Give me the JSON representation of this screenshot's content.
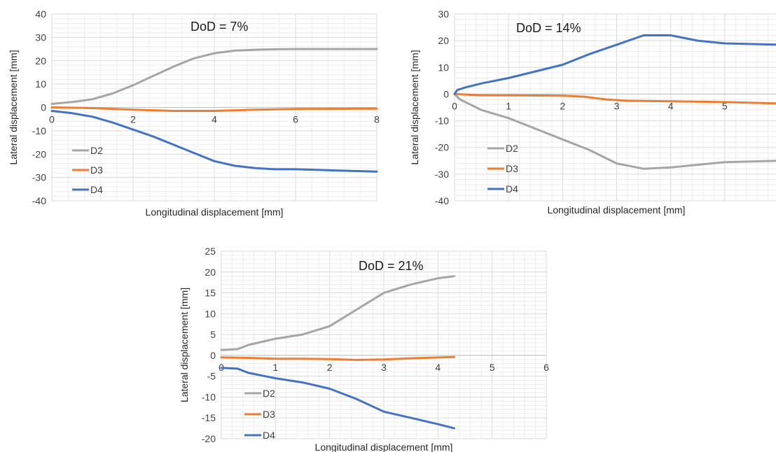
{
  "chart_data": [
    {
      "type": "line",
      "title": "DoD = 7%",
      "xlabel": "Longitudinal displacement [mm]",
      "ylabel": "Lateral displacement [mm]",
      "xlim": [
        0,
        8
      ],
      "ylim": [
        -40,
        40
      ],
      "xticks": [
        0,
        2,
        4,
        6,
        8
      ],
      "yticks": [
        -40,
        -30,
        -20,
        -10,
        0,
        10,
        20,
        30,
        40
      ],
      "grid": true,
      "legend_position": "bottom-left",
      "series": [
        {
          "name": "D2",
          "color": "#a5a5a5",
          "points": [
            [
              0,
              1.5
            ],
            [
              0.5,
              2.3
            ],
            [
              1,
              3.5
            ],
            [
              1.5,
              6
            ],
            [
              2,
              9.5
            ],
            [
              2.5,
              13.5
            ],
            [
              3,
              17.5
            ],
            [
              3.5,
              21
            ],
            [
              4,
              23.2
            ],
            [
              4.5,
              24.3
            ],
            [
              5,
              24.7
            ],
            [
              5.5,
              24.9
            ],
            [
              6,
              25
            ],
            [
              6.5,
              25
            ],
            [
              7,
              25
            ],
            [
              8,
              25
            ]
          ]
        },
        {
          "name": "D3",
          "color": "#ed7d31",
          "points": [
            [
              0,
              0
            ],
            [
              1,
              -0.3
            ],
            [
              2,
              -1
            ],
            [
              3,
              -1.5
            ],
            [
              4,
              -1.5
            ],
            [
              5,
              -1
            ],
            [
              6,
              -0.7
            ],
            [
              7,
              -0.6
            ],
            [
              8,
              -0.5
            ]
          ]
        },
        {
          "name": "D4",
          "color": "#4472c4",
          "points": [
            [
              0,
              -1.5
            ],
            [
              0.5,
              -2.5
            ],
            [
              1,
              -4
            ],
            [
              1.5,
              -6.5
            ],
            [
              2,
              -9.5
            ],
            [
              2.5,
              -12.5
            ],
            [
              3,
              -16
            ],
            [
              3.5,
              -19.5
            ],
            [
              4,
              -23
            ],
            [
              4.5,
              -25
            ],
            [
              5,
              -26
            ],
            [
              5.5,
              -26.5
            ],
            [
              6,
              -26.5
            ],
            [
              7,
              -27
            ],
            [
              8,
              -27.5
            ]
          ]
        }
      ]
    },
    {
      "type": "line",
      "title": "DoD = 14%",
      "xlabel": "Longitudinal displacement [mm]",
      "ylabel": "Lateral displacement [mm]",
      "xlim": [
        0,
        6
      ],
      "ylim": [
        -40,
        30
      ],
      "xticks": [
        0,
        1,
        2,
        3,
        4,
        5,
        6
      ],
      "yticks": [
        -40,
        -30,
        -20,
        -10,
        0,
        10,
        20,
        30
      ],
      "grid": true,
      "legend_position": "bottom-left",
      "series": [
        {
          "name": "D2",
          "color": "#a5a5a5",
          "points": [
            [
              0,
              0
            ],
            [
              0.1,
              -2
            ],
            [
              0.3,
              -4
            ],
            [
              0.5,
              -6
            ],
            [
              1,
              -9
            ],
            [
              1.5,
              -13
            ],
            [
              2,
              -17
            ],
            [
              2.5,
              -21
            ],
            [
              3,
              -26
            ],
            [
              3.5,
              -28
            ],
            [
              4,
              -27.5
            ],
            [
              4.5,
              -26.5
            ],
            [
              5,
              -25.5
            ],
            [
              6,
              -25
            ]
          ]
        },
        {
          "name": "D3",
          "color": "#ed7d31",
          "points": [
            [
              0,
              0
            ],
            [
              0.5,
              -0.5
            ],
            [
              1,
              -0.5
            ],
            [
              2,
              -0.6
            ],
            [
              2.4,
              -1
            ],
            [
              2.8,
              -2
            ],
            [
              3.2,
              -2.5
            ],
            [
              4,
              -2.7
            ],
            [
              5,
              -3
            ],
            [
              6,
              -3.5
            ]
          ]
        },
        {
          "name": "D4",
          "color": "#4472c4",
          "points": [
            [
              0,
              0
            ],
            [
              0.05,
              1.5
            ],
            [
              0.2,
              2.5
            ],
            [
              0.5,
              4
            ],
            [
              1,
              6
            ],
            [
              1.5,
              8.5
            ],
            [
              2,
              11
            ],
            [
              2.5,
              15
            ],
            [
              3,
              18.5
            ],
            [
              3.5,
              22
            ],
            [
              4,
              22
            ],
            [
              4.5,
              20
            ],
            [
              5,
              19
            ],
            [
              6,
              18.5
            ]
          ]
        }
      ]
    },
    {
      "type": "line",
      "title": "DoD = 21%",
      "xlabel": "Longitudinal displacement [mm]",
      "ylabel": "Lateral displacement [mm]",
      "xlim": [
        0,
        6
      ],
      "ylim": [
        -20,
        25
      ],
      "xticks": [
        0,
        1,
        2,
        3,
        4,
        5,
        6
      ],
      "yticks": [
        -20,
        -15,
        -10,
        -5,
        0,
        5,
        10,
        15,
        20,
        25
      ],
      "grid": true,
      "legend_position": "bottom-left",
      "series": [
        {
          "name": "D2",
          "color": "#a5a5a5",
          "points": [
            [
              0,
              1.3
            ],
            [
              0.3,
              1.5
            ],
            [
              0.5,
              2.5
            ],
            [
              1,
              4
            ],
            [
              1.5,
              5
            ],
            [
              2,
              7
            ],
            [
              2.5,
              11
            ],
            [
              3,
              15
            ],
            [
              3.5,
              17
            ],
            [
              4,
              18.5
            ],
            [
              4.3,
              19
            ]
          ]
        },
        {
          "name": "D3",
          "color": "#ed7d31",
          "points": [
            [
              0,
              -0.5
            ],
            [
              0.5,
              -0.6
            ],
            [
              1,
              -0.8
            ],
            [
              1.5,
              -0.8
            ],
            [
              2,
              -0.9
            ],
            [
              2.5,
              -1.1
            ],
            [
              3,
              -1
            ],
            [
              3.5,
              -0.7
            ],
            [
              4,
              -0.5
            ],
            [
              4.3,
              -0.4
            ]
          ]
        },
        {
          "name": "D4",
          "color": "#4472c4",
          "points": [
            [
              0,
              -3
            ],
            [
              0.3,
              -3.2
            ],
            [
              0.5,
              -4.2
            ],
            [
              1,
              -5.5
            ],
            [
              1.5,
              -6.5
            ],
            [
              2,
              -8
            ],
            [
              2.5,
              -10.5
            ],
            [
              3,
              -13.5
            ],
            [
              3.5,
              -15
            ],
            [
              4,
              -16.5
            ],
            [
              4.3,
              -17.5
            ]
          ]
        }
      ]
    }
  ]
}
